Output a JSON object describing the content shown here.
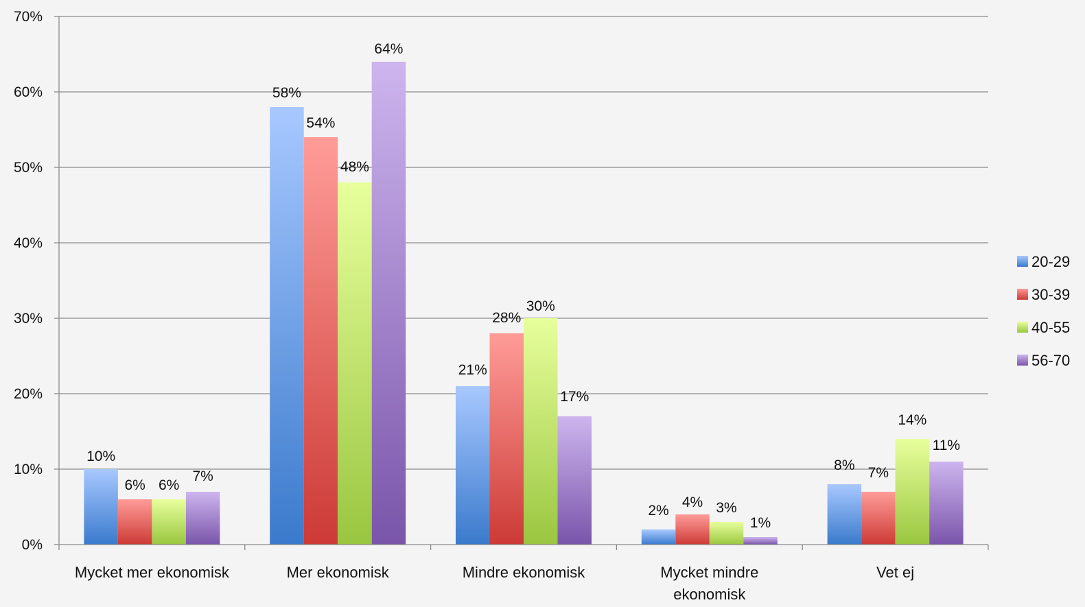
{
  "chart_data": {
    "type": "bar",
    "categories": [
      [
        "Mycket mer ekonomisk"
      ],
      [
        "Mer ekonomisk"
      ],
      [
        "Mindre ekonomisk"
      ],
      [
        "Mycket mindre",
        "ekonomisk"
      ],
      [
        "Vet ej"
      ]
    ],
    "series": [
      {
        "name": "20-29",
        "values": [
          10,
          58,
          21,
          2,
          8
        ],
        "labels": [
          "10%",
          "58%",
          "21%",
          "2%",
          "8%"
        ],
        "color_top": "#a8c8ff",
        "color_bottom": "#3a7acc"
      },
      {
        "name": "30-39",
        "values": [
          6,
          54,
          28,
          4,
          7
        ],
        "labels": [
          "6%",
          "54%",
          "28%",
          "4%",
          "7%"
        ],
        "color_top": "#ff9c98",
        "color_bottom": "#cc3a36"
      },
      {
        "name": "40-55",
        "values": [
          6,
          48,
          30,
          3,
          14
        ],
        "labels": [
          "6%",
          "48%",
          "30%",
          "3%",
          "14%"
        ],
        "color_top": "#e8ff9c",
        "color_bottom": "#99c640"
      },
      {
        "name": "56-70",
        "values": [
          7,
          64,
          17,
          1,
          11
        ],
        "labels": [
          "7%",
          "64%",
          "17%",
          "1%",
          "11%"
        ],
        "color_top": "#cdb5ee",
        "color_bottom": "#7a55aa"
      }
    ],
    "yticks": [
      "0%",
      "10%",
      "20%",
      "30%",
      "40%",
      "50%",
      "60%",
      "70%"
    ],
    "ylim": [
      0,
      70
    ],
    "grid": true,
    "legend_position": "right"
  }
}
